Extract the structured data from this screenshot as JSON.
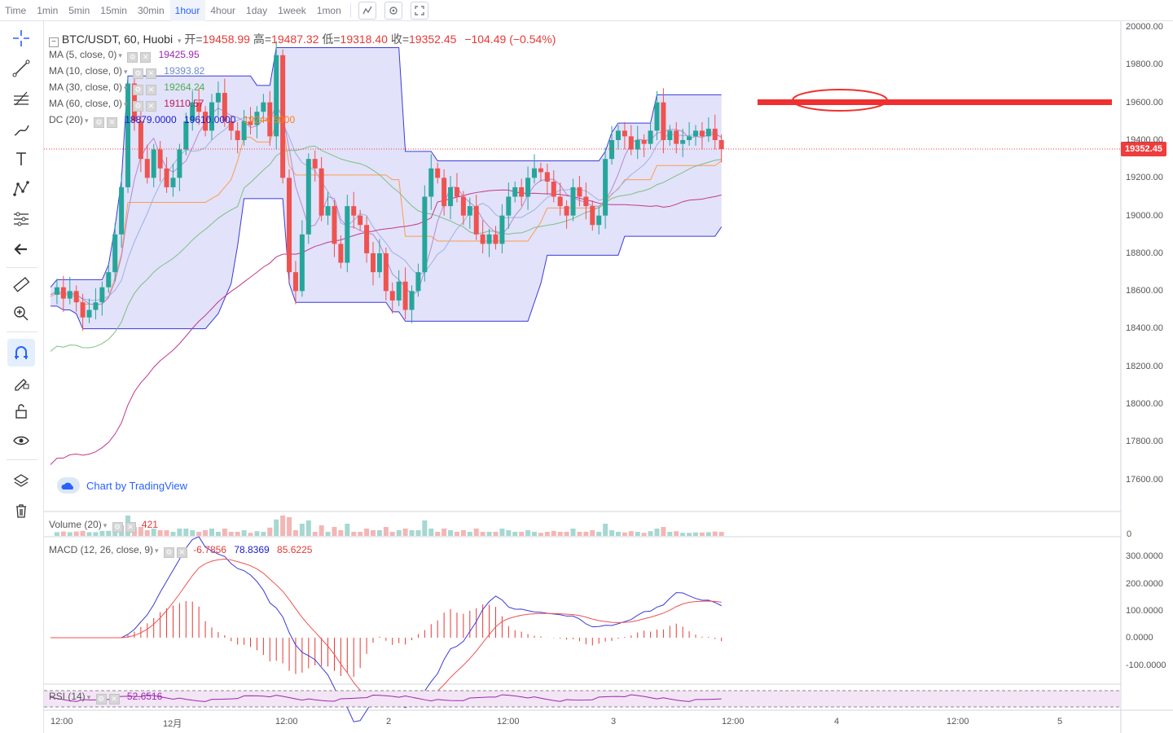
{
  "toolbar": {
    "timeframes": [
      "Time",
      "1min",
      "5min",
      "15min",
      "30min",
      "1hour",
      "4hour",
      "1day",
      "1week",
      "1mon"
    ],
    "active_timeframe": "1hour",
    "icons": [
      "indicators-icon",
      "settings-icon",
      "fullscreen-icon"
    ]
  },
  "left_tools": [
    "crosshair-icon",
    "trendline-icon",
    "fib-icon",
    "brush-icon",
    "text-icon",
    "pattern-icon",
    "measure-lines-icon",
    "back-arrow-icon",
    "ruler-icon",
    "zoom-in-icon",
    "magnet-icon",
    "lock-drawing-icon",
    "unlock-icon",
    "eye-icon",
    "layers-icon",
    "trash-icon"
  ],
  "symbol": {
    "name": "BTC/USDT, 60, Huobi",
    "open_label": "开=",
    "open": "19458.99",
    "high_label": "高=",
    "high": "19487.32",
    "low_label": "低=",
    "low": "19318.40",
    "close_label": "收=",
    "close": "19352.45",
    "change": "−104.49 (−0.54%)"
  },
  "indicators": [
    {
      "name": "MA (5, close, 0)",
      "value": "19425.95",
      "color": "#9c27b0"
    },
    {
      "name": "MA (10, close, 0)",
      "value": "19393.82",
      "color": "#6b8cc8"
    },
    {
      "name": "MA (30, close, 0)",
      "value": "19264.24",
      "color": "#4caf50"
    },
    {
      "name": "MA (60, close, 0)",
      "value": "19110.57",
      "color": "#c2185b"
    },
    {
      "name": "DC (20)",
      "values": [
        "18879.0000",
        "19610.0000",
        "19244.5000"
      ],
      "colors": [
        "#1a1ad0",
        "#1a1ad0",
        "#ff7f0e"
      ]
    }
  ],
  "watermark": "Chart by TradingView",
  "last_price": "19352.45",
  "price_axis": [
    "20000.00",
    "19800.00",
    "19600.00",
    "19400.00",
    "19200.00",
    "19000.00",
    "18800.00",
    "18600.00",
    "18400.00",
    "18200.00",
    "18000.00",
    "17800.00",
    "17600.00"
  ],
  "time_axis": [
    "12:00",
    "12月",
    "12:00",
    "2",
    "12:00",
    "3",
    "12:00",
    "4",
    "12:00",
    "5"
  ],
  "volume": {
    "label": "Volume (20)",
    "value": "421",
    "axis_zero": "0"
  },
  "macd": {
    "label": "MACD (12, 26, close, 9)",
    "values": [
      "-6.7856",
      "78.8369",
      "85.6225"
    ],
    "axis": [
      "300.0000",
      "200.0000",
      "100.0000",
      "0.0000",
      "-100.0000"
    ]
  },
  "rsi": {
    "label": "RSI (14)",
    "value": "52.6516"
  },
  "colors": {
    "up": "#26a69a",
    "down": "#ef5350",
    "accent": "#2962ff",
    "channel_fill": "#d8d8f8",
    "annotation": "#f03030"
  }
}
